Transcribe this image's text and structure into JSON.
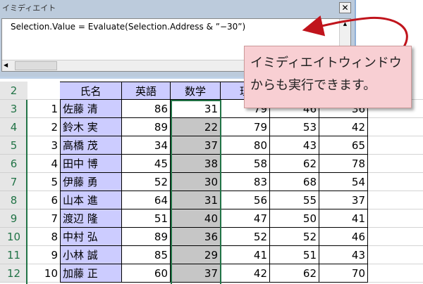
{
  "immediate_window": {
    "title": "イミディエイト",
    "close_label": "✕",
    "code": "Selection.Value = Evaluate(Selection.Address & ”−30”)"
  },
  "callout": {
    "line1": "イミディエイトウィンドウ",
    "line2": "からも実行できます。"
  },
  "sheet": {
    "header_row": "2",
    "headers": [
      "氏名",
      "英語",
      "数学",
      "理",
      "",
      ""
    ],
    "rows": [
      {
        "row": "3",
        "no": "1",
        "name": "佐藤 清",
        "vals": [
          "86",
          "31",
          "79",
          "46",
          "36"
        ]
      },
      {
        "row": "4",
        "no": "2",
        "name": "鈴木 実",
        "vals": [
          "89",
          "22",
          "79",
          "53",
          "42"
        ]
      },
      {
        "row": "5",
        "no": "3",
        "name": "高橋 茂",
        "vals": [
          "34",
          "37",
          "80",
          "43",
          "65"
        ]
      },
      {
        "row": "6",
        "no": "4",
        "name": "田中 博",
        "vals": [
          "45",
          "38",
          "58",
          "62",
          "78"
        ]
      },
      {
        "row": "7",
        "no": "5",
        "name": "伊藤 勇",
        "vals": [
          "52",
          "30",
          "83",
          "68",
          "54"
        ]
      },
      {
        "row": "8",
        "no": "6",
        "name": "山本 進",
        "vals": [
          "64",
          "31",
          "56",
          "55",
          "37"
        ]
      },
      {
        "row": "9",
        "no": "7",
        "name": "渡辺 隆",
        "vals": [
          "51",
          "40",
          "47",
          "50",
          "41"
        ]
      },
      {
        "row": "10",
        "no": "8",
        "name": "中村 弘",
        "vals": [
          "89",
          "36",
          "52",
          "52",
          "46"
        ]
      },
      {
        "row": "11",
        "no": "9",
        "name": "小林 誠",
        "vals": [
          "85",
          "29",
          "41",
          "51",
          "43"
        ]
      },
      {
        "row": "12",
        "no": "10",
        "name": "加藤 正",
        "vals": [
          "60",
          "37",
          "42",
          "62",
          "70"
        ]
      }
    ]
  },
  "colors": {
    "selection_border": "#217346",
    "name_fill": "#ccccff",
    "selected_fill": "#c6c6c6",
    "callout_fill": "#f8cfd3",
    "arrow": "#c0141c"
  }
}
